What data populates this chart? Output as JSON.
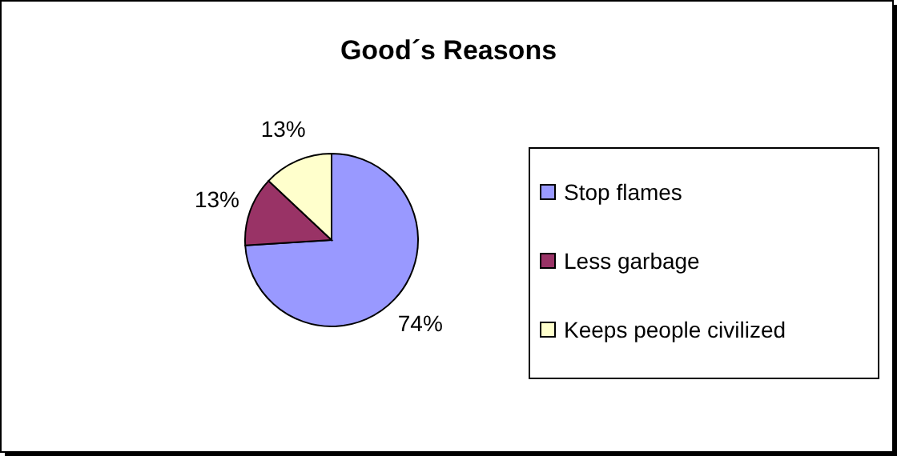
{
  "chart_data": {
    "type": "pie",
    "title": "Good´s Reasons",
    "categories": [
      "Stop flames",
      "Less garbage",
      "Keeps people civilized"
    ],
    "values": [
      74,
      13,
      13
    ],
    "colors": [
      "#9999ff",
      "#993366",
      "#ffffcc"
    ],
    "value_labels": [
      "74%",
      "13%",
      "13%"
    ],
    "legend": "right"
  }
}
